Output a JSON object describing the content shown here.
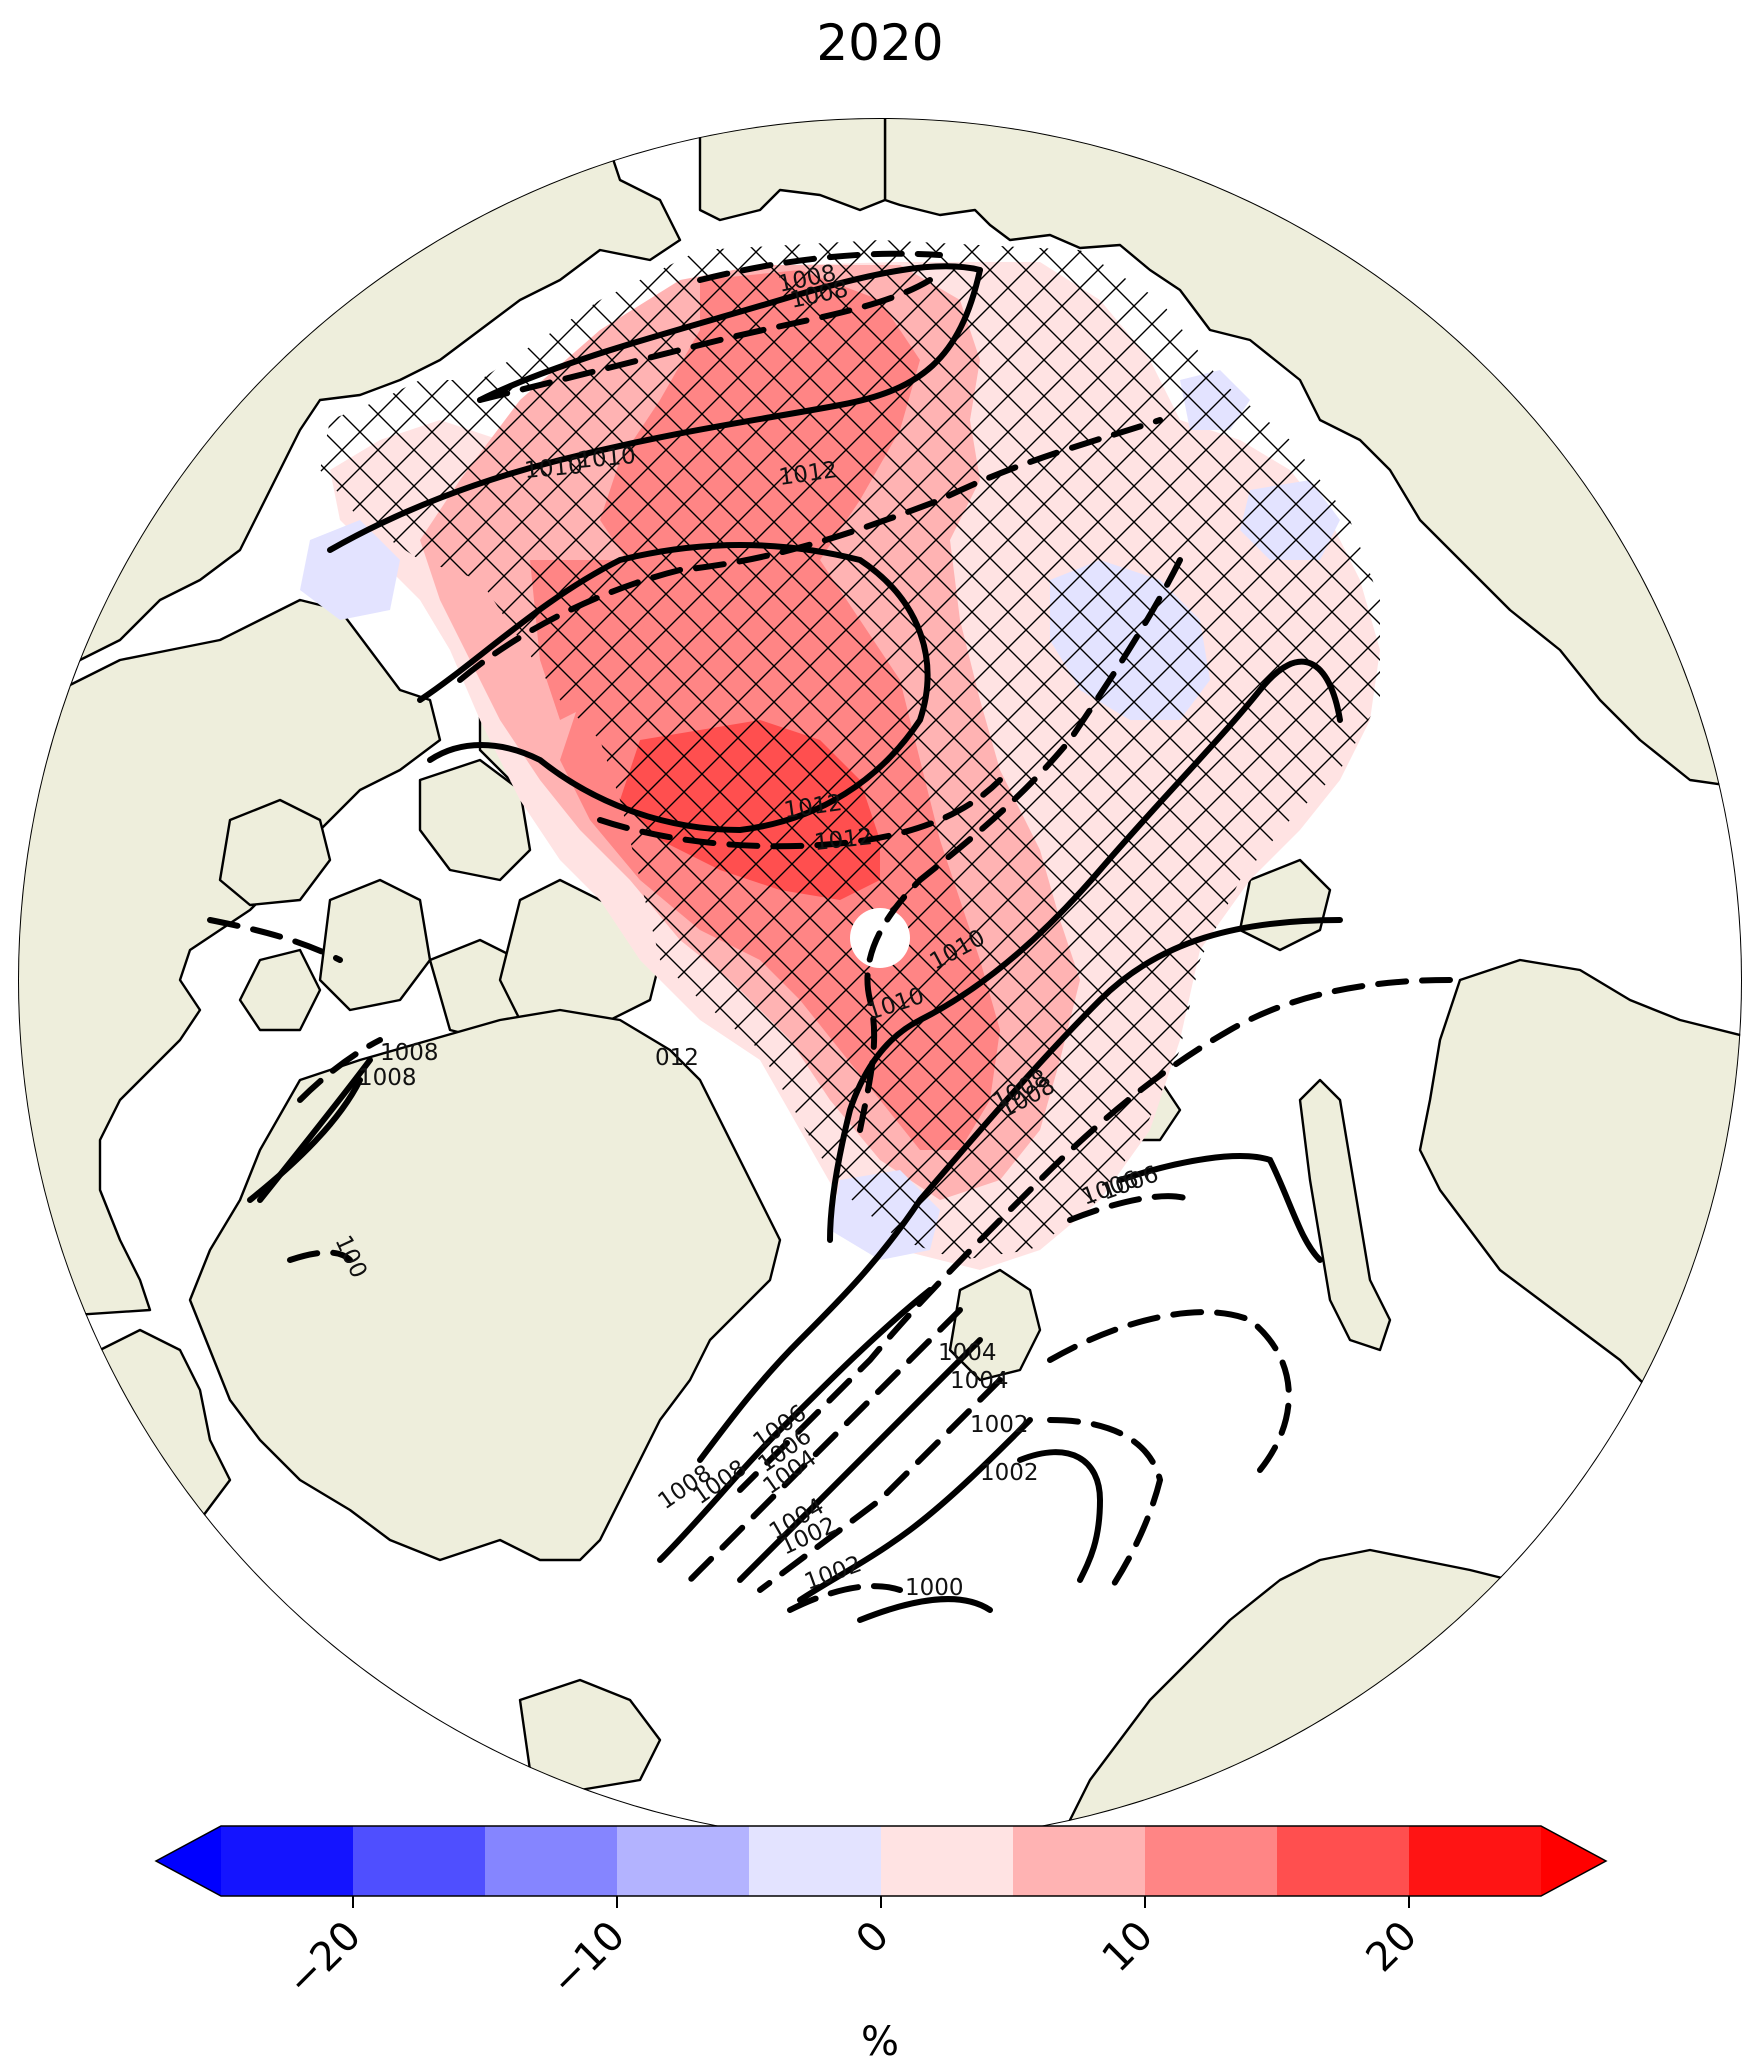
{
  "map": {
    "title": "2020",
    "projection": "north-polar-stereographic",
    "colors": {
      "land": "#eeeedc",
      "ocean": "#ffffff",
      "coast": "#000000"
    },
    "hatching": "cross-hatched area (significance)",
    "contour_labels": [
      "1012",
      "1012",
      "1012",
      "1012",
      "1010",
      "1010",
      "1010",
      "1010",
      "1008",
      "1008",
      "1008",
      "1008",
      "1008",
      "1008",
      "1008",
      "1008",
      "1006",
      "1006",
      "1006",
      "1006",
      "1004",
      "1004",
      "1004",
      "1004",
      "1002",
      "1002",
      "1002",
      "1002",
      "1002",
      "1000",
      "100",
      "100",
      "012"
    ]
  },
  "colorbar": {
    "unit_label": "%",
    "tick_labels": [
      "−20",
      "−10",
      "0",
      "10",
      "20"
    ],
    "tick_values": [
      -20,
      -10,
      0,
      10,
      20
    ],
    "range": [
      -25,
      25
    ],
    "extend": "both",
    "bins": [
      {
        "from": -25,
        "to": -20,
        "color": "#1414ff"
      },
      {
        "from": -20,
        "to": -15,
        "color": "#4f4fff"
      },
      {
        "from": -15,
        "to": -10,
        "color": "#8585ff"
      },
      {
        "from": -10,
        "to": -5,
        "color": "#b3b3ff"
      },
      {
        "from": -5,
        "to": 0,
        "color": "#e3e3ff"
      },
      {
        "from": 0,
        "to": 5,
        "color": "#ffe3e3"
      },
      {
        "from": 5,
        "to": 10,
        "color": "#ffb3b3"
      },
      {
        "from": 10,
        "to": 15,
        "color": "#ff8585"
      },
      {
        "from": 15,
        "to": 20,
        "color": "#ff4f4f"
      },
      {
        "from": 20,
        "to": 25,
        "color": "#ff1414"
      }
    ],
    "under_color": "#0000ff",
    "over_color": "#ff0000"
  }
}
